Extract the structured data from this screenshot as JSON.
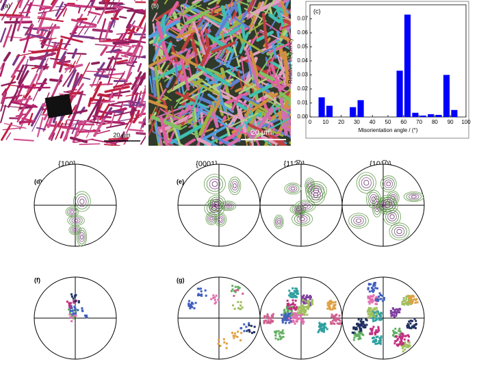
{
  "panels": {
    "a": "(a)",
    "b": "(b)",
    "scale_a": "20 μm",
    "scale_b": "20 μm",
    "d": "(d)",
    "e": "(e)",
    "f": "(f)",
    "g": "(g)"
  },
  "pole_headers": [
    "{100}",
    "{0001}",
    "{112̅0}",
    "{101̅0}"
  ],
  "chart_data": {
    "type": "histogram",
    "panel": "(c)",
    "x_label": "Misorientation angle / (°)",
    "y_label": "Relative frequency",
    "bins": [
      0,
      5,
      10,
      15,
      20,
      25,
      30,
      35,
      40,
      45,
      50,
      55,
      60,
      65,
      70,
      75,
      80,
      85,
      90,
      95,
      100
    ],
    "values": [
      0,
      0.014,
      0.008,
      0,
      0,
      0.007,
      0.012,
      0,
      0,
      0,
      0,
      0.033,
      0.073,
      0.003,
      0.001,
      0.002,
      0.0015,
      0.03,
      0.005,
      0
    ],
    "color": "#0000ff",
    "xlim": [
      0,
      100
    ],
    "xticks": [
      0,
      10,
      20,
      30,
      40,
      50,
      60,
      70,
      80,
      90,
      100
    ],
    "ylim": [
      0,
      0.08
    ],
    "yticks": [
      {
        "value": 0,
        "label": "0.00"
      },
      {
        "value": 0.01,
        "label": "0.01"
      },
      {
        "value": 0.02,
        "label": "0.02"
      },
      {
        "value": 0.03,
        "label": "0.03"
      },
      {
        "value": 0.04,
        "label": "0.04"
      },
      {
        "value": 0.05,
        "label": "0.05"
      },
      {
        "value": 0.06,
        "label": "0.06"
      },
      {
        "value": 0.07,
        "label": "0.07"
      }
    ]
  }
}
